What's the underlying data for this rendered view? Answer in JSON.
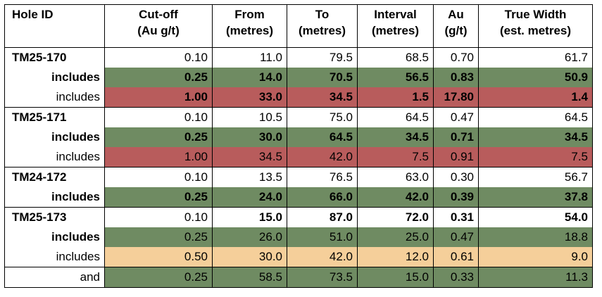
{
  "headers": [
    {
      "line1": "Hole ID",
      "line2": ""
    },
    {
      "line1": "Cut-off",
      "line2": "(Au g/t)"
    },
    {
      "line1": "From",
      "line2": "(metres)"
    },
    {
      "line1": "To",
      "line2": "(metres)"
    },
    {
      "line1": "Interval",
      "line2": "(metres)"
    },
    {
      "line1": "Au",
      "line2": "(g/t)"
    },
    {
      "line1": "True Width",
      "line2": "(est. metres)"
    }
  ],
  "colors": {
    "green": "#6f8b62",
    "red": "#b85c5c",
    "peach": "#f5cf9a"
  },
  "rows": [
    {
      "label": "TM25-170",
      "cutoff": "0.10",
      "from": "11.0",
      "to": "79.5",
      "interval": "68.5",
      "au": "0.70",
      "true_width": "61.7"
    },
    {
      "label": "includes",
      "cutoff": "0.25",
      "from": "14.0",
      "to": "70.5",
      "interval": "56.5",
      "au": "0.83",
      "true_width": "50.9"
    },
    {
      "label": "includes",
      "cutoff": "1.00",
      "from": "33.0",
      "to": "34.5",
      "interval": "1.5",
      "au": "17.80",
      "true_width": "1.4"
    },
    {
      "label": "TM25-171",
      "cutoff": "0.10",
      "from": "10.5",
      "to": "75.0",
      "interval": "64.5",
      "au": "0.47",
      "true_width": "64.5"
    },
    {
      "label": "includes",
      "cutoff": "0.25",
      "from": "30.0",
      "to": "64.5",
      "interval": "34.5",
      "au": "0.71",
      "true_width": "34.5"
    },
    {
      "label": "includes",
      "cutoff": "1.00",
      "from": "34.5",
      "to": "42.0",
      "interval": "7.5",
      "au": "0.91",
      "true_width": "7.5"
    },
    {
      "label": "TM24-172",
      "cutoff": "0.10",
      "from": "13.5",
      "to": "76.5",
      "interval": "63.0",
      "au": "0.30",
      "true_width": "56.7"
    },
    {
      "label": "includes",
      "cutoff": "0.25",
      "from": "24.0",
      "to": "66.0",
      "interval": "42.0",
      "au": "0.39",
      "true_width": "37.8"
    },
    {
      "label": "TM25-173",
      "cutoff": "0.10",
      "from": "15.0",
      "to": "87.0",
      "interval": "72.0",
      "au": "0.31",
      "true_width": "54.0"
    },
    {
      "label": "includes",
      "cutoff": "0.25",
      "from": "26.0",
      "to": "51.0",
      "interval": "25.0",
      "au": "0.47",
      "true_width": "18.8"
    },
    {
      "label": "includes",
      "cutoff": "0.50",
      "from": "30.0",
      "to": "42.0",
      "interval": "12.0",
      "au": "0.61",
      "true_width": "9.0"
    },
    {
      "label": "and",
      "cutoff": "0.25",
      "from": "58.5",
      "to": "73.5",
      "interval": "15.0",
      "au": "0.33",
      "true_width": "11.3"
    }
  ]
}
